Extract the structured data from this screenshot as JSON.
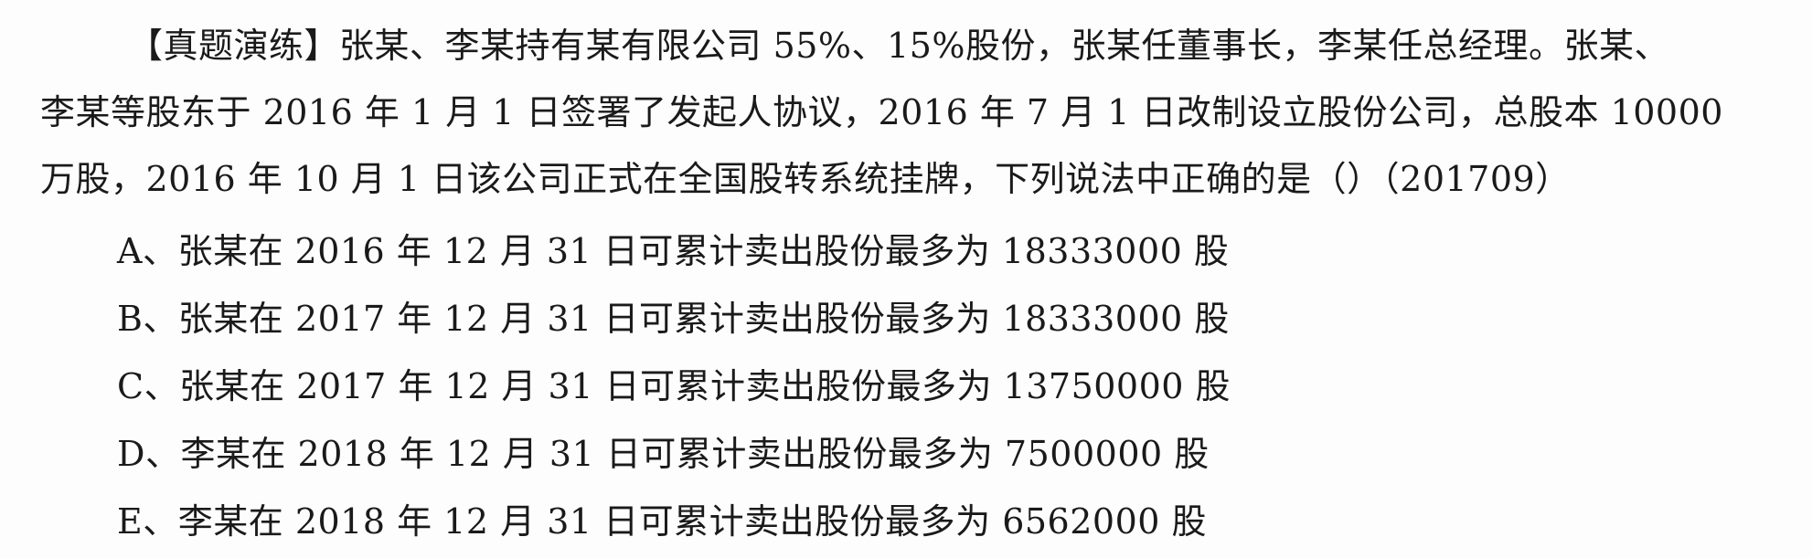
{
  "question": {
    "lines": [
      "【真题演练】张某、李某持有某有限公司 55%、15%股份，张某任董事长，李某任总经理。张某、",
      "李某等股东于 2016 年 1 月 1 日签署了发起人协议，2016 年 7 月 1 日改制设立股份公司，总股本 10000",
      "万股，2016 年 10 月 1 日该公司正式在全国股转系统挂牌，下列说法中正确的是（）（201709）"
    ]
  },
  "options": [
    "A、张某在 2016 年 12 月 31 日可累计卖出股份最多为 18333000 股",
    "B、张某在 2017 年 12 月 31 日可累计卖出股份最多为 18333000 股",
    "C、张某在 2017 年 12 月 31 日可累计卖出股份最多为 13750000 股",
    "D、李某在 2018 年 12 月 31 日可累计卖出股份最多为 7500000 股",
    "E、李某在 2018 年 12 月 31 日可累计卖出股份最多为 6562000 股"
  ]
}
